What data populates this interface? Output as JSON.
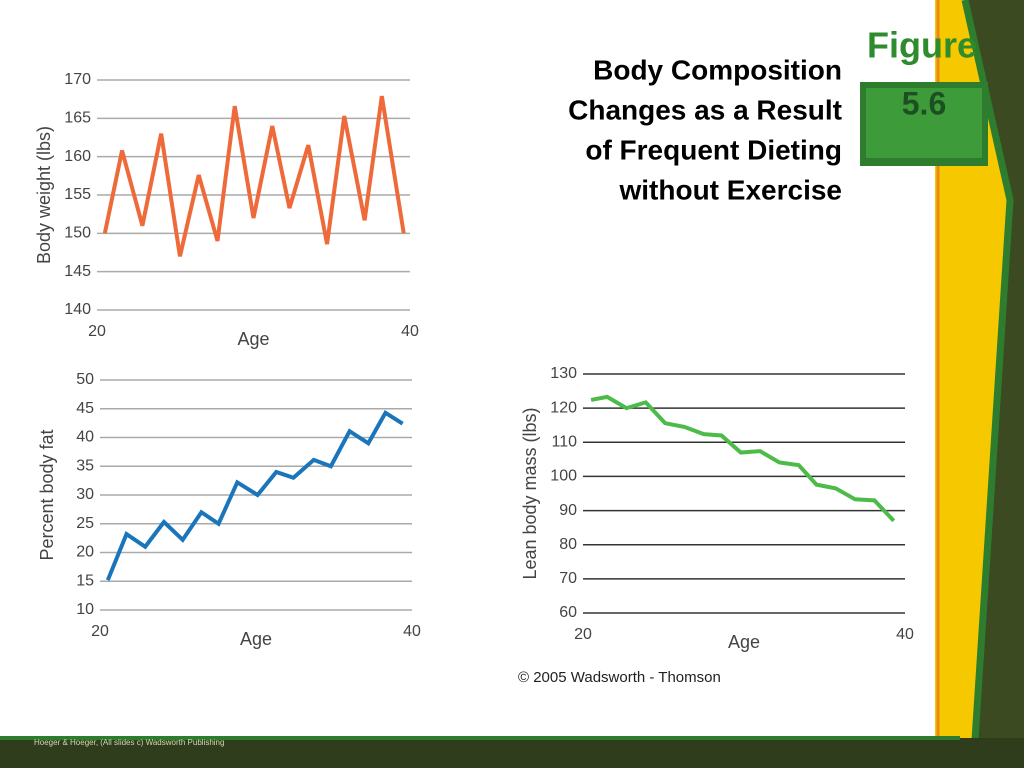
{
  "title": [
    "Body Composition",
    "Changes as a Result",
    "of Frequent Dieting",
    "without Exercise"
  ],
  "figure": {
    "label": "Figure",
    "number": "5.6"
  },
  "copyright": "© 2005 Wadsworth - Thomson",
  "footer": "Hoeger & Hoeger, (All slides c) Wadsworth Publishing",
  "chart_data": [
    {
      "type": "line",
      "x_label": "Age",
      "y_label": "Body weight (lbs)",
      "x": [
        20.5,
        21.6,
        22.9,
        24.1,
        25.3,
        26.5,
        27.7,
        28.8,
        30,
        31.2,
        32.3,
        33.5,
        34.7,
        35.8,
        37.1,
        38.2,
        39.6
      ],
      "series": [
        {
          "color": "#ee6a3a",
          "values": [
            150,
            160.8,
            151,
            163,
            147,
            157.6,
            149,
            166.6,
            152,
            164,
            153.3,
            161.5,
            148.6,
            165.3,
            151.7,
            167.9,
            150
          ]
        }
      ],
      "xlim": [
        20,
        40
      ],
      "xticks": [
        20,
        40
      ],
      "ylim": [
        140,
        170
      ],
      "yticks": [
        140,
        145,
        150,
        155,
        160,
        165,
        170
      ],
      "grid": true,
      "grid_color": "#aaaaaa"
    },
    {
      "type": "line",
      "x_label": "Age",
      "y_label": "Percent body fat",
      "x": [
        20.5,
        21.7,
        22.9,
        24.1,
        25.3,
        26.5,
        27.6,
        28.8,
        30.1,
        31.3,
        32.4,
        33.7,
        34.8,
        36,
        37.2,
        38.3,
        39.4
      ],
      "series": [
        {
          "color": "#1a75bb",
          "values": [
            15.2,
            23.2,
            21,
            25.3,
            22.2,
            27,
            25,
            32.2,
            30,
            34,
            33,
            36.1,
            35,
            41.1,
            39,
            44.3,
            42.4
          ]
        }
      ],
      "xlim": [
        20,
        40
      ],
      "xticks": [
        20,
        40
      ],
      "ylim": [
        10,
        50
      ],
      "yticks": [
        10,
        15,
        20,
        25,
        30,
        35,
        40,
        45,
        50
      ],
      "grid": true,
      "grid_color": "#aaaaaa"
    },
    {
      "type": "line",
      "x_label": "Age",
      "y_label": "Lean body mass (lbs)",
      "x": [
        20.5,
        21.5,
        22.7,
        23.9,
        25.1,
        26.3,
        27.5,
        28.6,
        29.8,
        31,
        32.2,
        33.4,
        34.5,
        35.7,
        36.9,
        38.1,
        39.3
      ],
      "series": [
        {
          "color": "#4dbb4a",
          "values": [
            122.4,
            123.3,
            120,
            121.7,
            115.6,
            114.5,
            112.4,
            112,
            107,
            107.4,
            104.1,
            103.3,
            97.6,
            96.5,
            93.3,
            93,
            87
          ]
        }
      ],
      "xlim": [
        20,
        40
      ],
      "xticks": [
        20,
        40
      ],
      "ylim": [
        60,
        130
      ],
      "yticks": [
        60,
        70,
        80,
        90,
        100,
        110,
        120,
        130
      ],
      "grid": true,
      "grid_color": "#333333"
    }
  ]
}
